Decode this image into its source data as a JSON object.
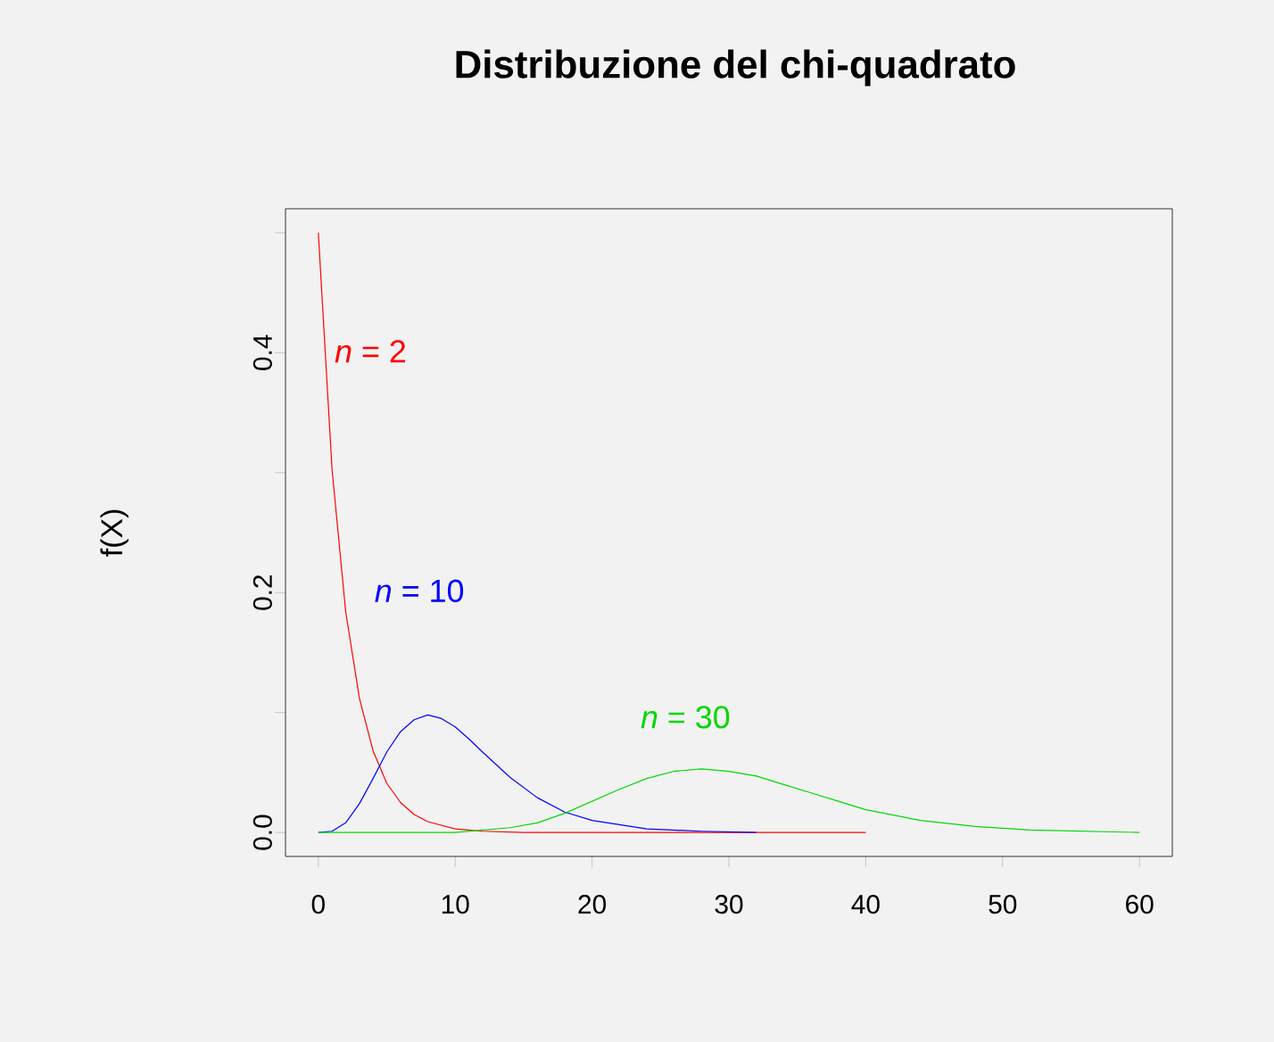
{
  "chart_data": {
    "type": "line",
    "title": "Distribuzione del chi-quadrato",
    "ylabel": "f(X)",
    "xlim": [
      -2.4,
      62.4
    ],
    "ylim": [
      -0.02,
      0.52
    ],
    "xticks": [
      0,
      10,
      20,
      30,
      40,
      50,
      60
    ],
    "yticks": [
      {
        "value": 0,
        "label": "0.0"
      },
      {
        "value": 0.1,
        "label": null
      },
      {
        "value": 0.2,
        "label": "0.2"
      },
      {
        "value": 0.3,
        "label": null
      },
      {
        "value": 0.4,
        "label": "0.4"
      },
      {
        "value": 0.5,
        "label": null
      }
    ],
    "grid": false,
    "marker": "none",
    "line_style": "solid",
    "series": [
      {
        "color": "#ff0000",
        "x": [
          0,
          1,
          2,
          3,
          4,
          5,
          6,
          7,
          8,
          10,
          12,
          15,
          20,
          30,
          40
        ],
        "values": [
          0.5,
          0.303,
          0.184,
          0.112,
          0.068,
          0.041,
          0.025,
          0.015,
          0.009,
          0.003,
          0.001,
          0,
          0,
          0,
          0
        ]
      },
      {
        "color": "#0000ff",
        "x": [
          0,
          1,
          2,
          3,
          4,
          5,
          6,
          7,
          8,
          9,
          10,
          11,
          12,
          14,
          16,
          18,
          20,
          24,
          28,
          32
        ],
        "values": [
          0,
          0.001,
          0.008,
          0.024,
          0.045,
          0.067,
          0.084,
          0.094,
          0.098,
          0.095,
          0.088,
          0.078,
          0.067,
          0.046,
          0.029,
          0.017,
          0.01,
          0.003,
          0.001,
          0
        ]
      },
      {
        "color": "#00d800",
        "x": [
          0,
          8,
          10,
          14,
          16,
          18,
          20,
          22,
          24,
          26,
          28,
          30,
          32,
          34,
          36,
          38,
          40,
          44,
          48,
          52,
          56,
          60
        ],
        "values": [
          0,
          0,
          0,
          0.004,
          0.008,
          0.016,
          0.026,
          0.036,
          0.045,
          0.051,
          0.053,
          0.051,
          0.047,
          0.04,
          0.033,
          0.026,
          0.019,
          0.01,
          0.005,
          0.002,
          0.001,
          0
        ]
      }
    ],
    "annotations": [
      "*n* = 2",
      "*n* = 10",
      "*n* = 30"
    ]
  }
}
